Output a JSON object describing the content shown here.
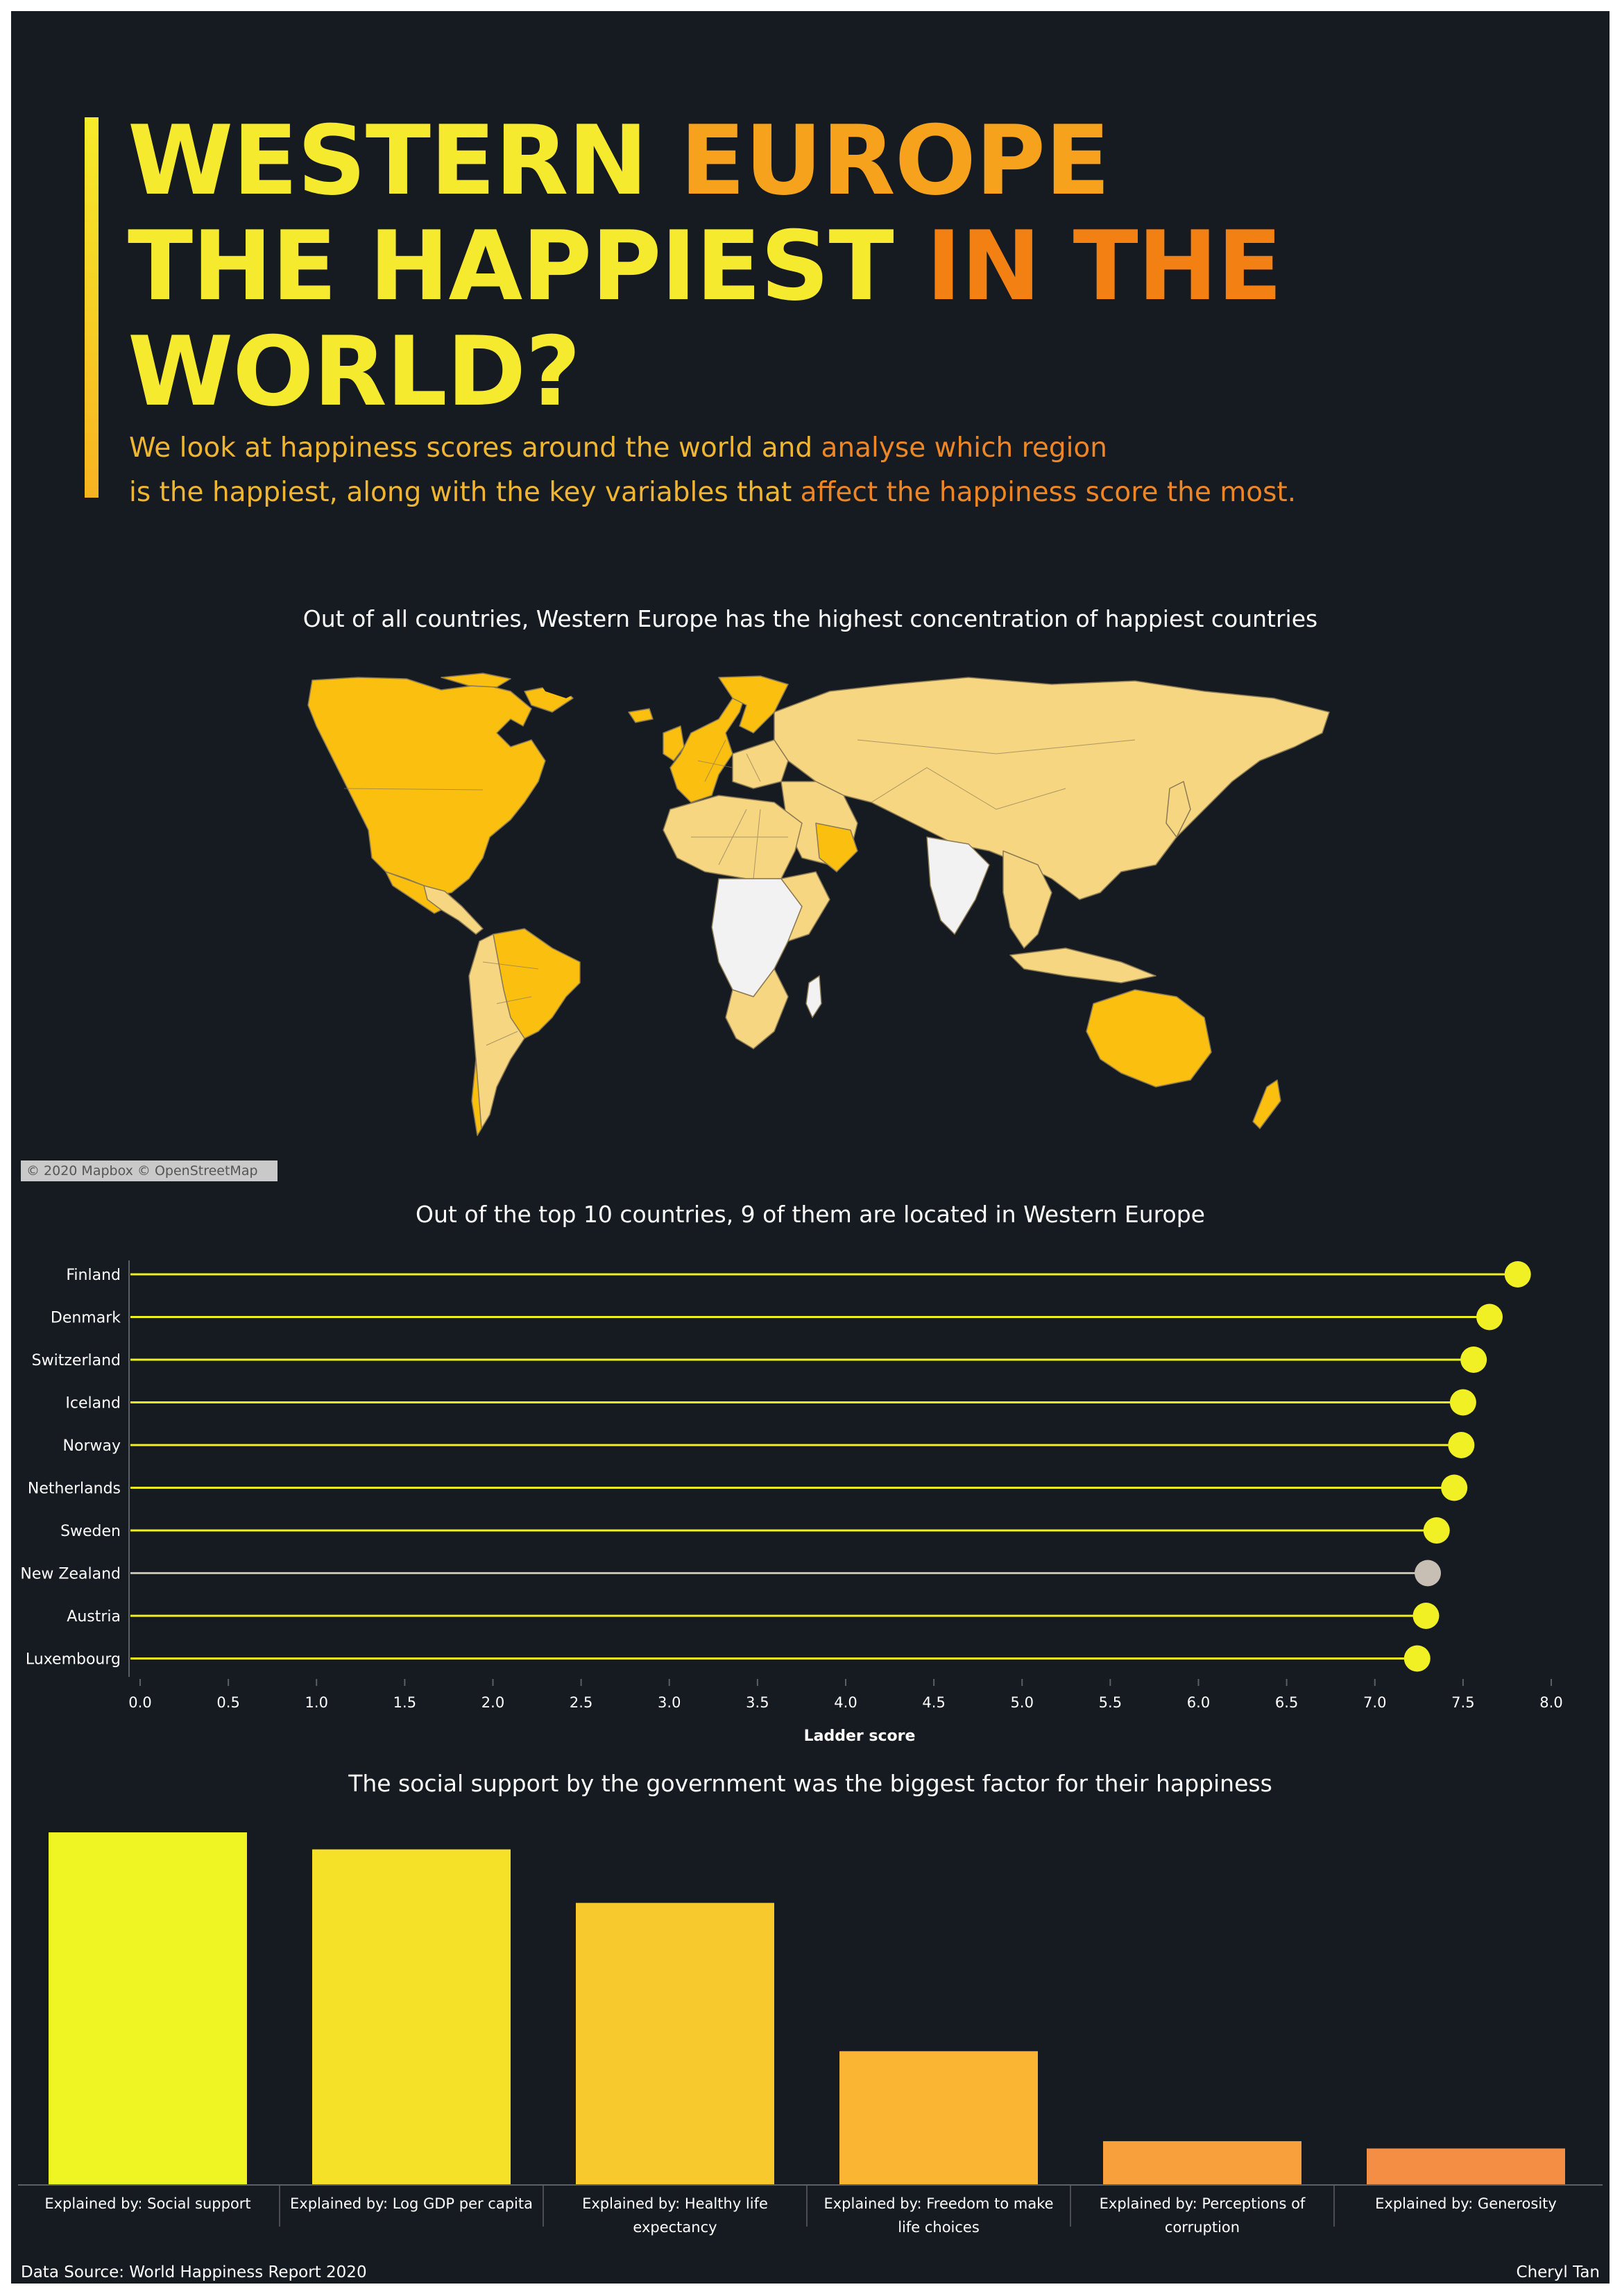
{
  "header": {
    "title_w1": "WESTERN",
    "title_w2": "EUROPE",
    "title_w3": "THE HAPPIEST",
    "title_w4": "IN THE",
    "title_w5": "WORLD?",
    "subtitle_l1a": "We look at happiness scores around the world and",
    "subtitle_l1b": "analyse which region",
    "subtitle_l2a": "is the happiest, along with the key variables that",
    "subtitle_l2b": "affect the happiness score the most."
  },
  "map": {
    "title": "Out of all countries, Western Europe has the highest concentration of happiest countries",
    "attribution": "© 2020 Mapbox © OpenStreetMap",
    "colors": {
      "high": "#fbbf10",
      "mid": "#f7d682",
      "none": "#f2f2f2",
      "border": "#8a7a55"
    }
  },
  "chart_data": [
    {
      "type": "lollipop",
      "title": "Out of the top 10 countries, 9 of them are located in Western Europe",
      "xlabel": "Ladder score",
      "xlim": [
        0,
        8
      ],
      "xticks": [
        "0.0",
        "0.5",
        "1.0",
        "1.5",
        "2.0",
        "2.5",
        "3.0",
        "3.5",
        "4.0",
        "4.5",
        "5.0",
        "5.5",
        "6.0",
        "6.5",
        "7.0",
        "7.5",
        "8.0"
      ],
      "categories": [
        "Finland",
        "Denmark",
        "Switzerland",
        "Iceland",
        "Norway",
        "Netherlands",
        "Sweden",
        "New Zealand",
        "Austria",
        "Luxembourg"
      ],
      "values": [
        7.81,
        7.65,
        7.56,
        7.5,
        7.49,
        7.45,
        7.35,
        7.3,
        7.29,
        7.24
      ],
      "colors": [
        "#f0f024",
        "#f0f024",
        "#f0f024",
        "#f0f024",
        "#f0f024",
        "#f0f024",
        "#f0f024",
        "#c7bfb3",
        "#f0f024",
        "#f0f024"
      ]
    },
    {
      "type": "bar",
      "title": "The social support by the government was the biggest factor for their happiness",
      "categories": [
        "Explained by: Social support",
        "Explained by: Log GDP per capita",
        "Explained by: Healthy life expectancy",
        "Explained by: Freedom to make life choices",
        "Explained by: Perceptions of corruption",
        "Explained by: Generosity"
      ],
      "category_lines": [
        [
          "Explained by: Social support"
        ],
        [
          "Explained by: Log GDP per capita"
        ],
        [
          "Explained by: Healthy life",
          "expectancy"
        ],
        [
          "Explained by: Freedom to make",
          "life choices"
        ],
        [
          "Explained by: Perceptions of",
          "corruption"
        ],
        [
          "Explained by: Generosity"
        ]
      ],
      "values": [
        1.45,
        1.38,
        1.16,
        0.55,
        0.18,
        0.15
      ],
      "colors": [
        "#eff522",
        "#f4e128",
        "#f8c92d",
        "#fab532",
        "#f7a03c",
        "#f48e44"
      ]
    }
  ],
  "footer": {
    "source": "Data Source: World Happiness Report 2020",
    "author": "Cheryl Tan"
  }
}
